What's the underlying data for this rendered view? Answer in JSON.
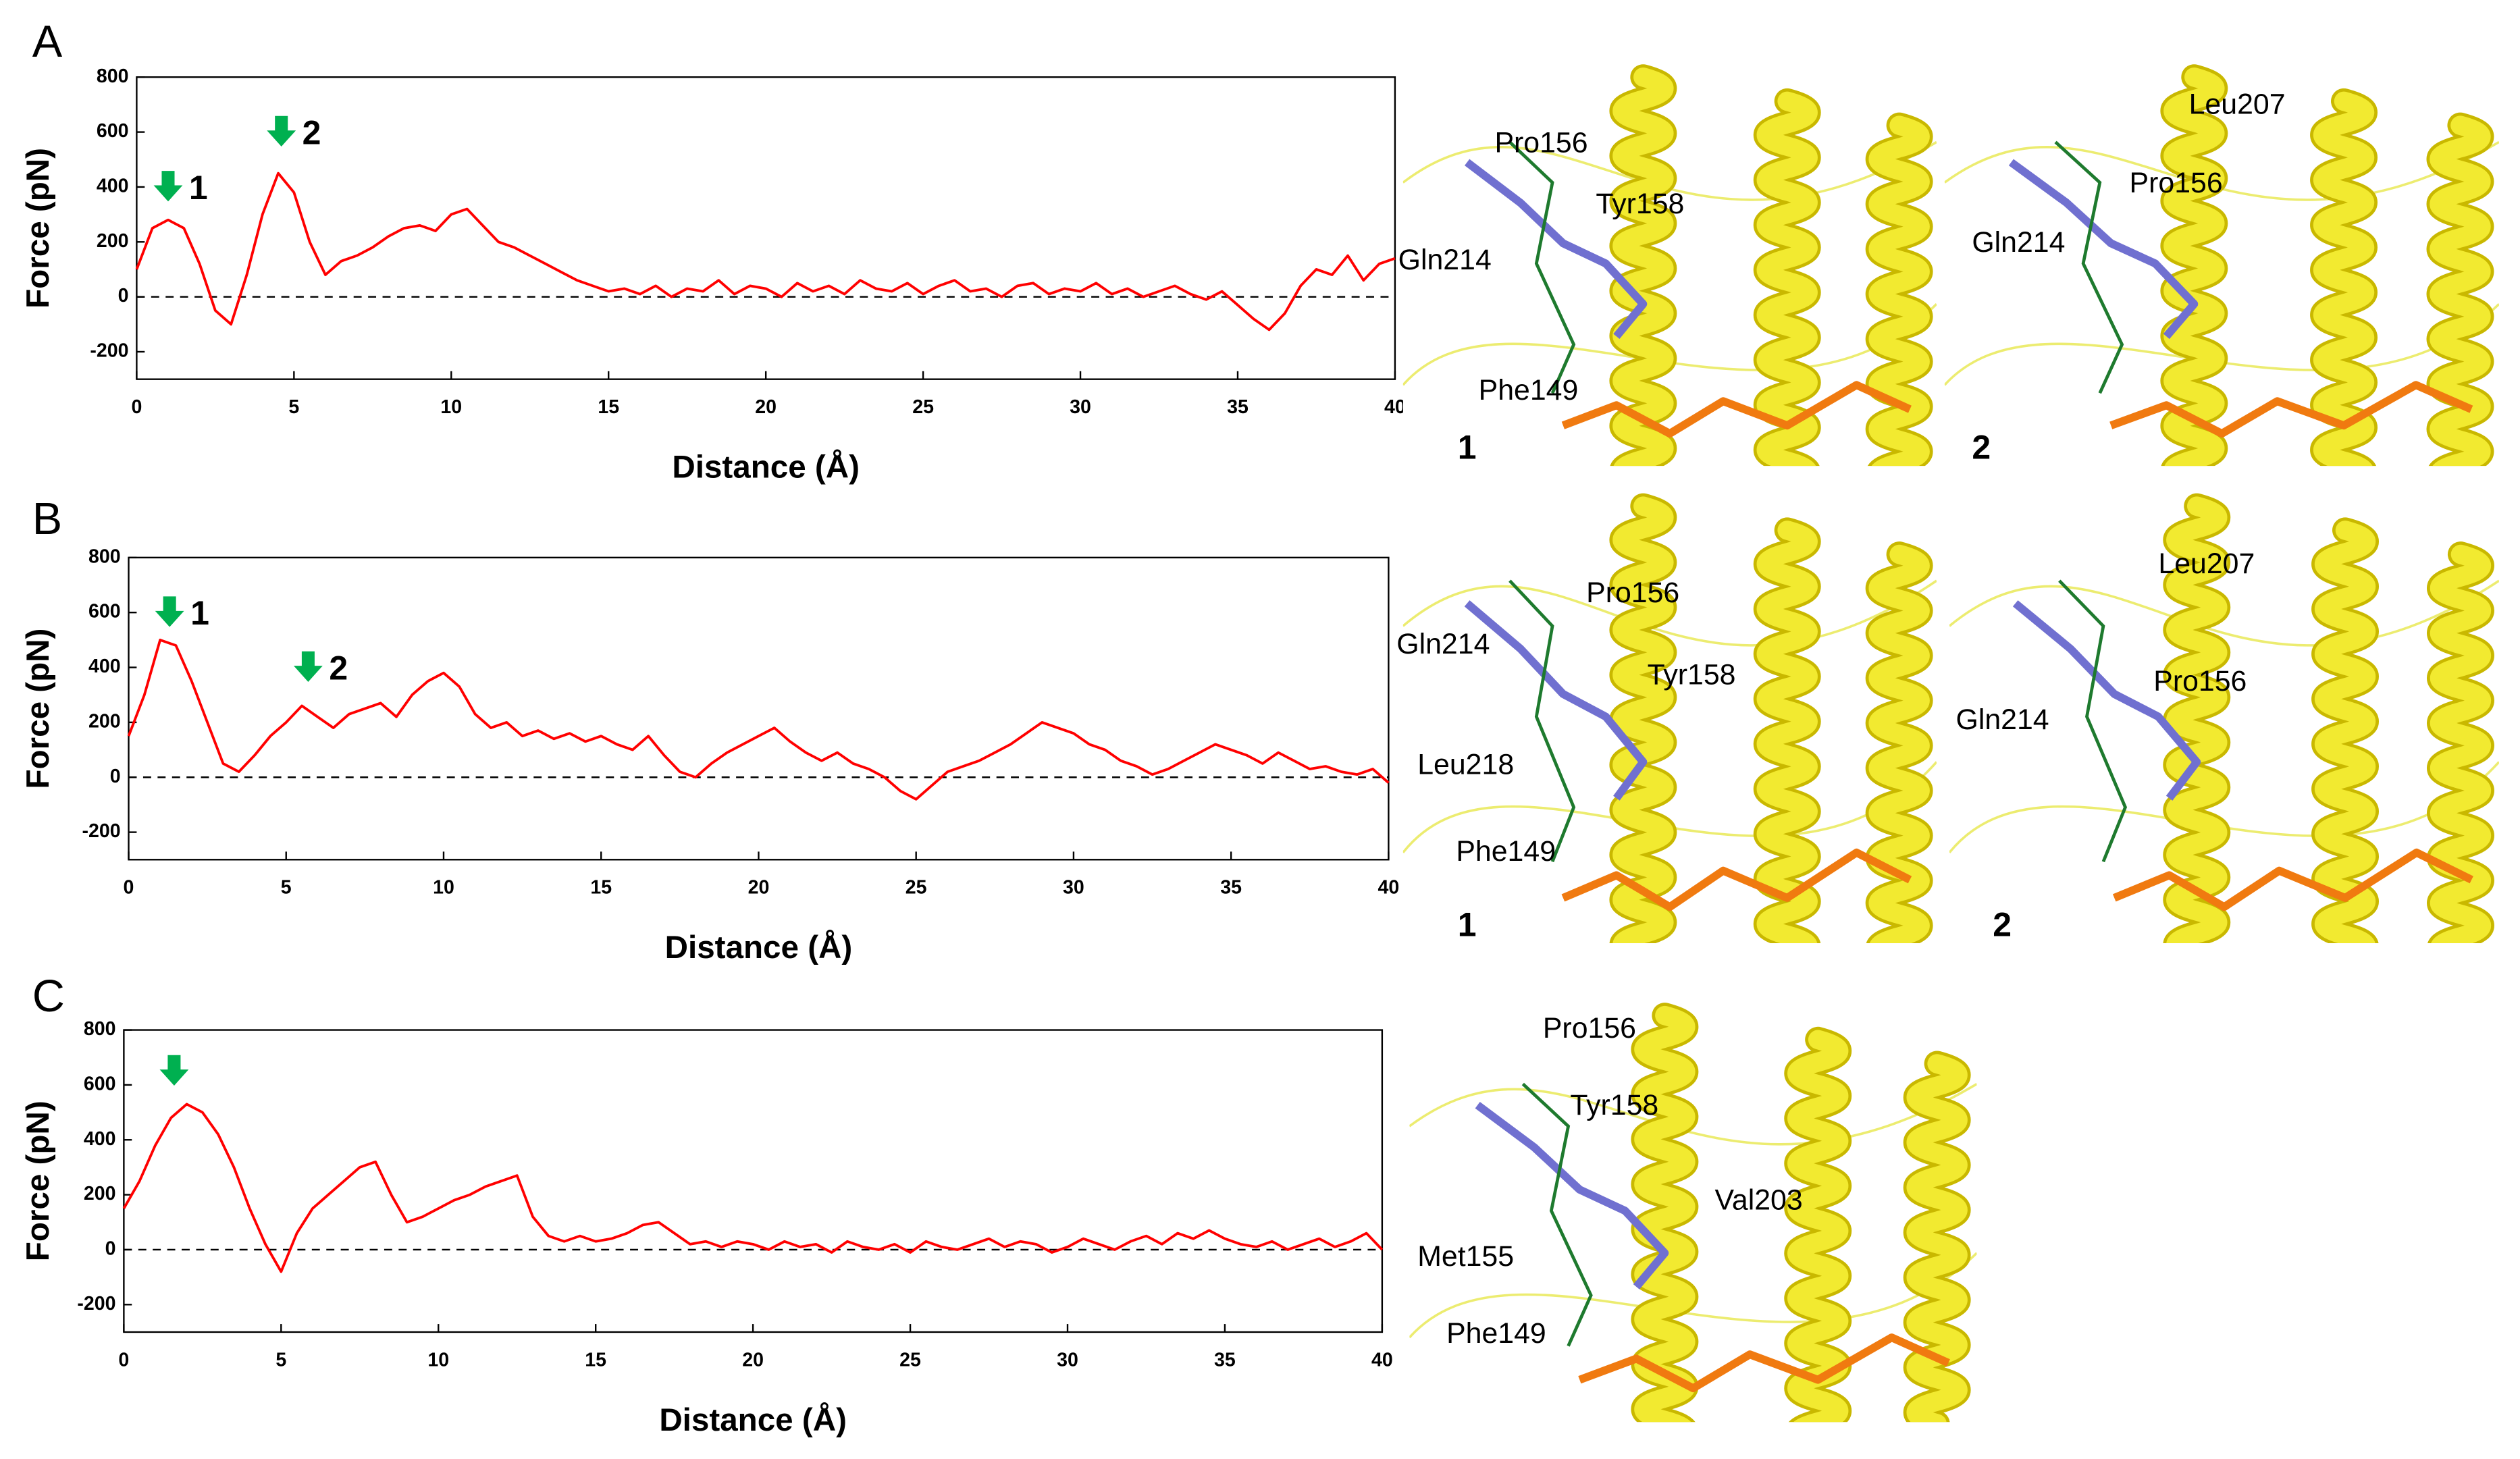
{
  "panels": [
    "A",
    "B",
    "C"
  ],
  "chart_data": [
    {
      "type": "line",
      "xlabel": "Distance (Å)",
      "ylabel": "Force (pN)",
      "color": "#ff0000",
      "xlim": [
        0,
        40
      ],
      "ylim": [
        -300,
        800
      ],
      "xticks": [
        0,
        5,
        10,
        15,
        20,
        25,
        30,
        35,
        40
      ],
      "yticks": [
        -200,
        0,
        200,
        400,
        600,
        800
      ],
      "zero_line": true,
      "annotations": [
        {
          "x": 1,
          "y": 400,
          "text": "1"
        },
        {
          "x": 4.6,
          "y": 600,
          "text": "2"
        }
      ],
      "x": [
        0,
        0.5,
        1,
        1.5,
        2,
        2.5,
        3,
        3.5,
        4,
        4.5,
        5,
        5.5,
        6,
        6.5,
        7,
        7.5,
        8,
        8.5,
        9,
        9.5,
        10,
        10.5,
        11,
        11.5,
        12,
        12.5,
        13,
        13.5,
        14,
        14.5,
        15,
        15.5,
        16,
        16.5,
        17,
        17.5,
        18,
        18.5,
        19,
        19.5,
        20,
        20.5,
        21,
        21.5,
        22,
        22.5,
        23,
        23.5,
        24,
        24.5,
        25,
        25.5,
        26,
        26.5,
        27,
        27.5,
        28,
        28.5,
        29,
        29.5,
        30,
        30.5,
        31,
        31.5,
        32,
        32.5,
        33,
        33.5,
        34,
        34.5,
        35,
        35.5,
        36,
        36.5,
        37,
        37.5,
        38,
        38.5,
        39,
        39.5,
        40
      ],
      "values": [
        100,
        250,
        280,
        250,
        120,
        -50,
        -100,
        80,
        300,
        450,
        380,
        200,
        80,
        130,
        150,
        180,
        220,
        250,
        260,
        240,
        300,
        320,
        260,
        200,
        180,
        150,
        120,
        90,
        60,
        40,
        20,
        30,
        10,
        40,
        0,
        30,
        20,
        60,
        10,
        40,
        30,
        0,
        50,
        20,
        40,
        10,
        60,
        30,
        20,
        50,
        10,
        40,
        60,
        20,
        30,
        0,
        40,
        50,
        10,
        30,
        20,
        50,
        10,
        30,
        0,
        20,
        40,
        10,
        -10,
        20,
        -30,
        -80,
        -120,
        -60,
        40,
        100,
        80,
        150,
        60,
        120,
        140
      ]
    },
    {
      "type": "line",
      "xlabel": "Distance (Å)",
      "ylabel": "Force (pN)",
      "color": "#ff0000",
      "xlim": [
        0,
        40
      ],
      "ylim": [
        -300,
        800
      ],
      "xticks": [
        0,
        5,
        10,
        15,
        20,
        25,
        30,
        35,
        40
      ],
      "yticks": [
        -200,
        0,
        200,
        400,
        600,
        800
      ],
      "zero_line": true,
      "annotations": [
        {
          "x": 1.3,
          "y": 600,
          "text": "1"
        },
        {
          "x": 5.7,
          "y": 400,
          "text": "2"
        }
      ],
      "x": [
        0,
        0.5,
        1,
        1.5,
        2,
        2.5,
        3,
        3.5,
        4,
        4.5,
        5,
        5.5,
        6,
        6.5,
        7,
        7.5,
        8,
        8.5,
        9,
        9.5,
        10,
        10.5,
        11,
        11.5,
        12,
        12.5,
        13,
        13.5,
        14,
        14.5,
        15,
        15.5,
        16,
        16.5,
        17,
        17.5,
        18,
        18.5,
        19,
        19.5,
        20,
        20.5,
        21,
        21.5,
        22,
        22.5,
        23,
        23.5,
        24,
        24.5,
        25,
        25.5,
        26,
        26.5,
        27,
        27.5,
        28,
        28.5,
        29,
        29.5,
        30,
        30.5,
        31,
        31.5,
        32,
        32.5,
        33,
        33.5,
        34,
        34.5,
        35,
        35.5,
        36,
        36.5,
        37,
        37.5,
        38,
        38.5,
        39,
        39.5,
        40
      ],
      "values": [
        150,
        300,
        500,
        480,
        350,
        200,
        50,
        20,
        80,
        150,
        200,
        260,
        220,
        180,
        230,
        250,
        270,
        220,
        300,
        350,
        380,
        330,
        230,
        180,
        200,
        150,
        170,
        140,
        160,
        130,
        150,
        120,
        100,
        150,
        80,
        20,
        0,
        50,
        90,
        120,
        150,
        180,
        130,
        90,
        60,
        90,
        50,
        30,
        0,
        -50,
        -80,
        -30,
        20,
        40,
        60,
        90,
        120,
        160,
        200,
        180,
        160,
        120,
        100,
        60,
        40,
        10,
        30,
        60,
        90,
        120,
        100,
        80,
        50,
        90,
        60,
        30,
        40,
        20,
        10,
        30,
        -20
      ]
    },
    {
      "type": "line",
      "xlabel": "Distance (Å)",
      "ylabel": "Force (pN)",
      "color": "#ff0000",
      "xlim": [
        0,
        40
      ],
      "ylim": [
        -300,
        800
      ],
      "xticks": [
        0,
        5,
        10,
        15,
        20,
        25,
        30,
        35,
        40
      ],
      "yticks": [
        -200,
        0,
        200,
        400,
        600,
        800
      ],
      "zero_line": true,
      "annotations": [
        {
          "x": 1.6,
          "y": 650
        }
      ],
      "x": [
        0,
        0.5,
        1,
        1.5,
        2,
        2.5,
        3,
        3.5,
        4,
        4.5,
        5,
        5.5,
        6,
        6.5,
        7,
        7.5,
        8,
        8.5,
        9,
        9.5,
        10,
        10.5,
        11,
        11.5,
        12,
        12.5,
        13,
        13.5,
        14,
        14.5,
        15,
        15.5,
        16,
        16.5,
        17,
        17.5,
        18,
        18.5,
        19,
        19.5,
        20,
        20.5,
        21,
        21.5,
        22,
        22.5,
        23,
        23.5,
        24,
        24.5,
        25,
        25.5,
        26,
        26.5,
        27,
        27.5,
        28,
        28.5,
        29,
        29.5,
        30,
        30.5,
        31,
        31.5,
        32,
        32.5,
        33,
        33.5,
        34,
        34.5,
        35,
        35.5,
        36,
        36.5,
        37,
        37.5,
        38,
        38.5,
        39,
        39.5,
        40
      ],
      "values": [
        150,
        250,
        380,
        480,
        530,
        500,
        420,
        300,
        150,
        20,
        -80,
        60,
        150,
        200,
        250,
        300,
        320,
        200,
        100,
        120,
        150,
        180,
        200,
        230,
        250,
        270,
        120,
        50,
        30,
        50,
        30,
        40,
        60,
        90,
        100,
        60,
        20,
        30,
        10,
        30,
        20,
        0,
        30,
        10,
        20,
        -10,
        30,
        10,
        0,
        20,
        -10,
        30,
        10,
        0,
        20,
        40,
        10,
        30,
        20,
        -10,
        10,
        40,
        20,
        0,
        30,
        50,
        20,
        60,
        40,
        70,
        40,
        20,
        10,
        30,
        0,
        20,
        40,
        10,
        30,
        60,
        0
      ]
    }
  ],
  "structures": [
    {
      "number": "1",
      "labels": [
        "Pro156",
        "Tyr158",
        "Gln214",
        "Phe149"
      ]
    },
    {
      "number": "2",
      "labels": [
        "Leu207",
        "Pro156",
        "Gln214"
      ]
    },
    {
      "number": "1",
      "labels": [
        "Pro156",
        "Gln214",
        "Tyr158",
        "Leu218",
        "Phe149"
      ]
    },
    {
      "number": "2",
      "labels": [
        "Leu207",
        "Gln214",
        "Pro156"
      ]
    },
    {
      "labels": [
        "Pro156",
        "Tyr158",
        "Val203",
        "Met155",
        "Phe149"
      ]
    }
  ]
}
